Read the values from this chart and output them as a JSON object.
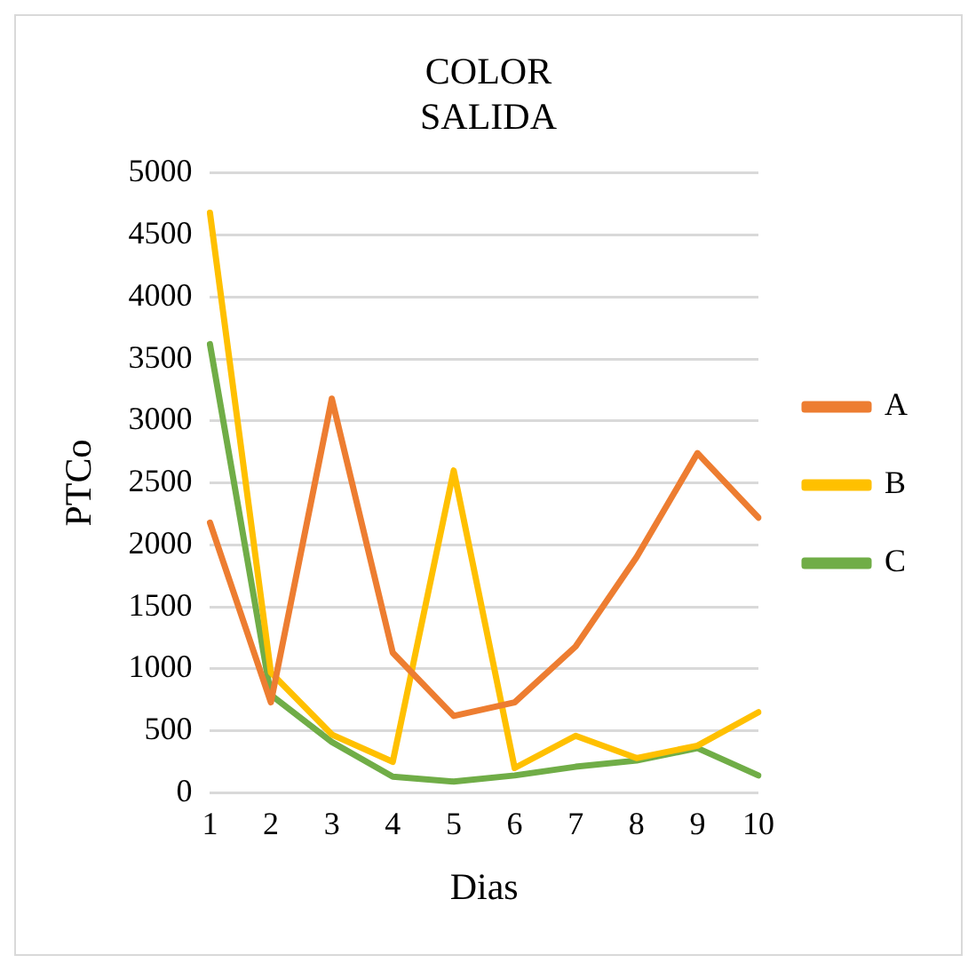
{
  "chart_data": {
    "type": "line",
    "title": "COLOR\nSALIDA",
    "xlabel": "Dias",
    "ylabel": "PTCo",
    "categories": [
      "1",
      "2",
      "3",
      "4",
      "5",
      "6",
      "7",
      "8",
      "9",
      "10"
    ],
    "series": [
      {
        "name": "A",
        "color": "#ed7d31",
        "values": [
          2180,
          730,
          3180,
          1130,
          620,
          730,
          1180,
          1900,
          2740,
          2220
        ]
      },
      {
        "name": "B",
        "color": "#ffc000",
        "values": [
          4680,
          970,
          470,
          250,
          2600,
          200,
          460,
          280,
          380,
          650
        ]
      },
      {
        "name": "C",
        "color": "#70ad47",
        "values": [
          3620,
          790,
          410,
          130,
          90,
          140,
          210,
          260,
          360,
          140
        ]
      }
    ],
    "ylim": [
      0,
      5000
    ],
    "yticks": [
      0,
      500,
      1000,
      1500,
      2000,
      2500,
      3000,
      3500,
      4000,
      4500,
      5000
    ],
    "grid": "y",
    "legend": "right",
    "marker": "none",
    "line_style": "solid"
  }
}
